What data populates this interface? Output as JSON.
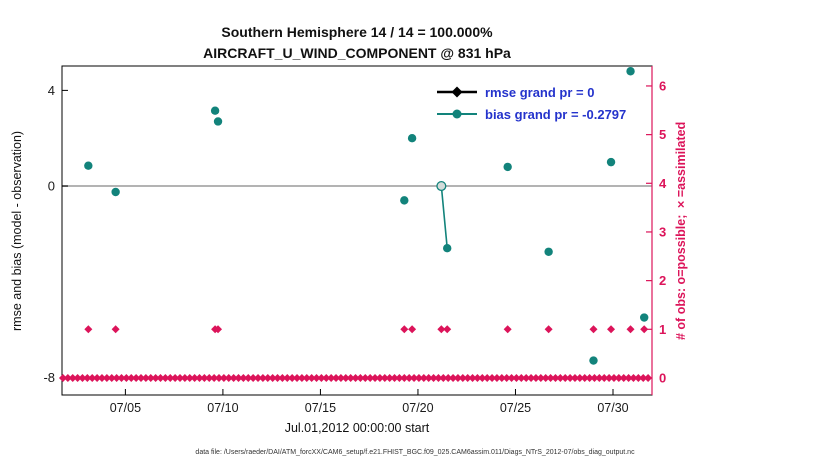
{
  "figure": {
    "title_line1": "Southern Hemisphere 14 / 14 = 100.000%",
    "title_line2": "AIRCRAFT_U_WIND_COMPONENT @ 831 hPa",
    "xlabel": "Jul.01,2012 00:00:00 start",
    "ylabel_left": "rmse and bias (model - observation)",
    "ylabel_right": "# of obs: o=possible; ×=assimilated",
    "caption": "data file: /Users/raeder/DAI/ATM_forcXX/CAM6_setup/f.e21.FHIST_BGC.f09_025.CAM6assim.011/Diags_NTrS_2012-07/obs_diag_output.nc"
  },
  "legend": {
    "rmse_label": "rmse grand pr = 0",
    "bias_label": "bias grand pr = -0.2797"
  },
  "colors": {
    "bias_teal": "#12837b",
    "obs_magenta": "#dc145a",
    "rmse_black": "#000000",
    "legend_text_blue": "#2433cc",
    "zero_line_gray": "#b3b3b3",
    "axis_black": "#000000"
  },
  "chart_data": {
    "type": "scatter",
    "title": "Southern Hemisphere 14 / 14 = 100.000% / AIRCRAFT_U_WIND_COMPONENT @ 831 hPa",
    "x_axis": {
      "range_days": [
        1.75,
        32.0
      ],
      "ticks": [
        {
          "day": 5,
          "label": "07/05"
        },
        {
          "day": 10,
          "label": "07/10"
        },
        {
          "day": 15,
          "label": "07/15"
        },
        {
          "day": 20,
          "label": "07/20"
        },
        {
          "day": 25,
          "label": "07/25"
        },
        {
          "day": 30,
          "label": "07/30"
        }
      ]
    },
    "y_left_axis": {
      "min": -8.74,
      "max": 5.02,
      "ticks": [
        {
          "value": 4,
          "label": "4"
        },
        {
          "value": 0,
          "label": "0"
        },
        {
          "value": -8,
          "label": "-8"
        }
      ],
      "zero_line": 0
    },
    "y_right_axis": {
      "min": -0.35,
      "max": 6.41,
      "ticks": [
        {
          "value": 6,
          "label": "6"
        },
        {
          "value": 5,
          "label": "5"
        },
        {
          "value": 4,
          "label": "4"
        },
        {
          "value": 3,
          "label": "3"
        },
        {
          "value": 2,
          "label": "2"
        },
        {
          "value": 1,
          "label": "1"
        },
        {
          "value": 0,
          "label": "0"
        }
      ]
    },
    "series": {
      "bias_points": [
        [
          3.1,
          0.85
        ],
        [
          4.5,
          -0.25
        ],
        [
          9.6,
          3.15
        ],
        [
          9.75,
          2.7
        ],
        [
          19.3,
          -0.6
        ],
        [
          19.7,
          2.0
        ],
        [
          21.5,
          -2.6
        ],
        [
          24.6,
          0.8
        ],
        [
          26.7,
          -2.75
        ],
        [
          29.0,
          -7.3
        ],
        [
          29.9,
          1.0
        ],
        [
          30.9,
          4.8
        ],
        [
          31.6,
          -5.5
        ]
      ],
      "bias_open_point": [
        21.2,
        0.0
      ],
      "bias_segment": [
        [
          21.2,
          0.0
        ],
        [
          21.5,
          -2.6
        ]
      ],
      "rmse_points": [],
      "rmse_grand_value": 0,
      "bias_grand_value": -0.2797,
      "obs_assimilated_days_count1": [
        3.1,
        4.5,
        9.6,
        9.75,
        19.3,
        19.7,
        21.2,
        21.5,
        24.6,
        26.7,
        29.0,
        29.9,
        30.9,
        31.6
      ],
      "obs_possible_count0": {
        "start_day": 1.8,
        "end_day": 31.85,
        "step_days": 0.25,
        "value": 0
      }
    }
  }
}
